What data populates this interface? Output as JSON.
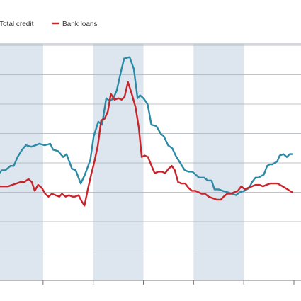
{
  "chart_data": {
    "type": "line",
    "title": "",
    "xlabel": "",
    "ylabel": "",
    "x": [
      0,
      1,
      2,
      3,
      4,
      5,
      6,
      7,
      8,
      9,
      10,
      11,
      12,
      13,
      14,
      15,
      16,
      17,
      18,
      19,
      20,
      21,
      22,
      23,
      24,
      25,
      26,
      27,
      28,
      29,
      30,
      31,
      32,
      33,
      34,
      35,
      36,
      37,
      38,
      39,
      40,
      41,
      42,
      43,
      44,
      45,
      46,
      47,
      48,
      49,
      50,
      51,
      52,
      53,
      54,
      55,
      56,
      57,
      58,
      59,
      60,
      61,
      62,
      63,
      64,
      65,
      66,
      67,
      68,
      69,
      70,
      71,
      72
    ],
    "xlim": [
      0,
      72
    ],
    "ylim": [
      0,
      10
    ],
    "x_ticks": [
      0,
      12,
      24,
      36,
      48,
      60,
      72
    ],
    "y_gridlines": [
      1,
      2,
      3,
      4,
      5,
      6,
      7,
      8
    ],
    "shaded_periods": [
      [
        0,
        12
      ],
      [
        24,
        36
      ],
      [
        48,
        60
      ]
    ],
    "shade_color": "#dde6ee",
    "grid": true,
    "legend_position": "top-left",
    "series": [
      {
        "name": "Total credit",
        "color": "#2b8aa5",
        "values": [
          4.0,
          3.6,
          3.9,
          3.85,
          4.05,
          4.15,
          4.45,
          4.55,
          4.65,
          4.5,
          4.7,
          4.75,
          4.6,
          4.55,
          4.5,
          4.45,
          4.4,
          3.9,
          3.8,
          3.6,
          3.4,
          4.0,
          4.5,
          4.8,
          5.2,
          5.8,
          6.2,
          7.0,
          7.2,
          7.4,
          7.6,
          7.9,
          8.0,
          7.8,
          7.2,
          7.6,
          7.4,
          6.5,
          5.8,
          5.7,
          5.5,
          5.3,
          5.2,
          5.0,
          4.8,
          4.7,
          4.6,
          4.6,
          4.5,
          4.4,
          4.3,
          4.1,
          4.0,
          4.0,
          3.95,
          3.95,
          3.9,
          3.8,
          3.9,
          3.9,
          3.85,
          3.8,
          3.8,
          3.95,
          4.1,
          4.0,
          4.2,
          4.4,
          4.4,
          4.6,
          4.65,
          4.7,
          4.8
        ],
        "line_points": [
          [
            -0.2,
            3.5
          ],
          [
            0.5,
            3.45
          ],
          [
            1.3,
            3.6
          ],
          [
            2.1,
            3.75
          ],
          [
            3.0,
            3.75
          ],
          [
            4.2,
            3.9
          ],
          [
            5.0,
            3.9
          ],
          [
            5.9,
            4.2
          ],
          [
            7.0,
            4.45
          ],
          [
            7.9,
            4.6
          ],
          [
            9.2,
            4.55
          ],
          [
            10.2,
            4.6
          ],
          [
            11.1,
            4.65
          ],
          [
            12.4,
            4.6
          ],
          [
            13.7,
            4.65
          ],
          [
            14.4,
            4.45
          ],
          [
            15.6,
            4.4
          ],
          [
            16.8,
            4.2
          ],
          [
            17.6,
            4.3
          ],
          [
            18.9,
            3.8
          ],
          [
            19.8,
            3.75
          ],
          [
            21.0,
            3.3
          ],
          [
            22.0,
            3.6
          ],
          [
            23.3,
            4.1
          ],
          [
            24.1,
            4.9
          ],
          [
            25.2,
            5.4
          ],
          [
            26.1,
            5.3
          ],
          [
            27.1,
            6.2
          ],
          [
            28.0,
            6.1
          ],
          [
            28.8,
            6.2
          ],
          [
            29.6,
            6.45
          ],
          [
            30.7,
            7.15
          ],
          [
            31.4,
            7.55
          ],
          [
            32.7,
            7.6
          ],
          [
            33.7,
            7.2
          ],
          [
            34.6,
            6.2
          ],
          [
            35.2,
            6.3
          ],
          [
            36.0,
            6.2
          ],
          [
            37.0,
            6.0
          ],
          [
            37.9,
            5.3
          ],
          [
            39.1,
            5.25
          ],
          [
            40.1,
            5.0
          ],
          [
            40.9,
            4.9
          ],
          [
            41.9,
            4.6
          ],
          [
            42.9,
            4.5
          ],
          [
            43.7,
            4.25
          ],
          [
            44.8,
            4.0
          ],
          [
            45.9,
            3.75
          ],
          [
            46.8,
            3.7
          ],
          [
            47.7,
            3.7
          ],
          [
            48.5,
            3.6
          ],
          [
            49.3,
            3.5
          ],
          [
            50.5,
            3.5
          ],
          [
            51.4,
            3.4
          ],
          [
            52.3,
            3.4
          ],
          [
            53.0,
            3.1
          ],
          [
            54.0,
            3.1
          ],
          [
            54.9,
            3.05
          ],
          [
            56.2,
            3.0
          ],
          [
            57.2,
            2.95
          ],
          [
            58.2,
            2.9
          ],
          [
            59.0,
            3.0
          ],
          [
            60.2,
            3.05
          ],
          [
            61.3,
            3.15
          ],
          [
            62.0,
            3.35
          ],
          [
            62.8,
            3.5
          ],
          [
            63.5,
            3.5
          ],
          [
            64.1,
            3.55
          ],
          [
            64.8,
            3.6
          ],
          [
            65.6,
            3.9
          ],
          [
            66.2,
            3.95
          ],
          [
            66.8,
            3.95
          ],
          [
            67.4,
            4.0
          ],
          [
            68.0,
            4.05
          ],
          [
            68.6,
            4.25
          ],
          [
            69.5,
            4.3
          ],
          [
            70.3,
            4.2
          ],
          [
            71.0,
            4.3
          ],
          [
            71.6,
            4.3
          ]
        ]
      },
      {
        "name": "Bank loans",
        "color": "#c8242b",
        "values": [
          3.6,
          3.5,
          3.45,
          3.5,
          3.55,
          3.6,
          3.55,
          3.7,
          3.75,
          3.6,
          3.1,
          3.2,
          3.25,
          3.0,
          3.05,
          2.9,
          2.85,
          2.9,
          2.85,
          2.75,
          2.6,
          3.2,
          3.8,
          4.5,
          5.2,
          6.2,
          7.3,
          7.6,
          7.7,
          7.75,
          7.75,
          7.8,
          7.9,
          7.5,
          6.8,
          6.2,
          5.5,
          5.4,
          5.3,
          5.2,
          5.0,
          4.8,
          4.5,
          4.2,
          4.05,
          3.9,
          3.75,
          3.7,
          3.6,
          3.5,
          3.4,
          3.3,
          3.25,
          3.2,
          3.1,
          3.1,
          3.05,
          3.05,
          3.0,
          3.05,
          3.1,
          3.1,
          3.15,
          3.2,
          3.25,
          3.3,
          3.35,
          3.4,
          3.45,
          3.45,
          3.5,
          3.5,
          3.55
        ],
        "line_points": [
          [
            0.0,
            3.35
          ],
          [
            0.5,
            3.5
          ],
          [
            1.0,
            3.3
          ],
          [
            1.7,
            3.2
          ],
          [
            2.6,
            3.2
          ],
          [
            3.6,
            3.2
          ],
          [
            4.6,
            3.25
          ],
          [
            5.6,
            3.3
          ],
          [
            6.6,
            3.35
          ],
          [
            7.5,
            3.35
          ],
          [
            8.5,
            3.45
          ],
          [
            9.3,
            3.35
          ],
          [
            10.0,
            3.05
          ],
          [
            10.8,
            3.25
          ],
          [
            11.7,
            3.15
          ],
          [
            12.5,
            2.95
          ],
          [
            13.3,
            2.85
          ],
          [
            14.1,
            2.95
          ],
          [
            15.0,
            2.9
          ],
          [
            15.9,
            2.85
          ],
          [
            16.5,
            2.95
          ],
          [
            17.4,
            2.85
          ],
          [
            18.2,
            2.9
          ],
          [
            19.0,
            2.85
          ],
          [
            19.6,
            2.85
          ],
          [
            20.5,
            2.9
          ],
          [
            21.2,
            2.7
          ],
          [
            21.9,
            2.55
          ],
          [
            22.7,
            3.1
          ],
          [
            23.5,
            3.6
          ],
          [
            24.3,
            4.05
          ],
          [
            25.1,
            4.6
          ],
          [
            25.9,
            5.45
          ],
          [
            26.7,
            5.5
          ],
          [
            27.5,
            5.75
          ],
          [
            28.2,
            6.35
          ],
          [
            29.1,
            6.15
          ],
          [
            30.0,
            6.2
          ],
          [
            30.8,
            6.15
          ],
          [
            31.5,
            6.25
          ],
          [
            32.3,
            6.75
          ],
          [
            33.2,
            6.35
          ],
          [
            34.1,
            5.9
          ],
          [
            34.9,
            5.2
          ],
          [
            35.6,
            4.2
          ],
          [
            36.3,
            4.25
          ],
          [
            37.1,
            4.2
          ],
          [
            37.8,
            3.95
          ],
          [
            38.7,
            3.65
          ],
          [
            39.6,
            3.7
          ],
          [
            40.5,
            3.7
          ],
          [
            41.2,
            3.65
          ],
          [
            42.0,
            3.8
          ],
          [
            42.8,
            3.9
          ],
          [
            43.5,
            3.75
          ],
          [
            44.3,
            3.35
          ],
          [
            45.1,
            3.3
          ],
          [
            46.0,
            3.3
          ],
          [
            46.8,
            3.15
          ],
          [
            47.6,
            3.05
          ],
          [
            48.4,
            3.05
          ],
          [
            49.2,
            3.0
          ],
          [
            49.9,
            2.95
          ],
          [
            50.7,
            2.95
          ],
          [
            51.6,
            2.85
          ],
          [
            52.5,
            2.8
          ],
          [
            53.5,
            2.75
          ],
          [
            54.5,
            2.75
          ],
          [
            55.2,
            2.85
          ],
          [
            56.0,
            2.95
          ],
          [
            57.0,
            2.95
          ],
          [
            57.7,
            3.0
          ],
          [
            58.6,
            3.05
          ],
          [
            59.4,
            3.2
          ],
          [
            60.3,
            3.1
          ],
          [
            61.0,
            3.15
          ],
          [
            61.9,
            3.2
          ],
          [
            62.8,
            3.25
          ],
          [
            63.8,
            3.25
          ],
          [
            64.6,
            3.2
          ],
          [
            65.4,
            3.25
          ],
          [
            66.3,
            3.3
          ],
          [
            67.2,
            3.3
          ],
          [
            68.0,
            3.3
          ],
          [
            68.7,
            3.25
          ],
          [
            69.3,
            3.2
          ],
          [
            69.9,
            3.15
          ],
          [
            70.5,
            3.1
          ],
          [
            71.0,
            3.05
          ],
          [
            71.6,
            3.0
          ]
        ]
      }
    ]
  },
  "legend": [
    {
      "label": "Total credit",
      "color": "#2b8aa5"
    },
    {
      "label": "Bank loans",
      "color": "#c8242b"
    }
  ]
}
